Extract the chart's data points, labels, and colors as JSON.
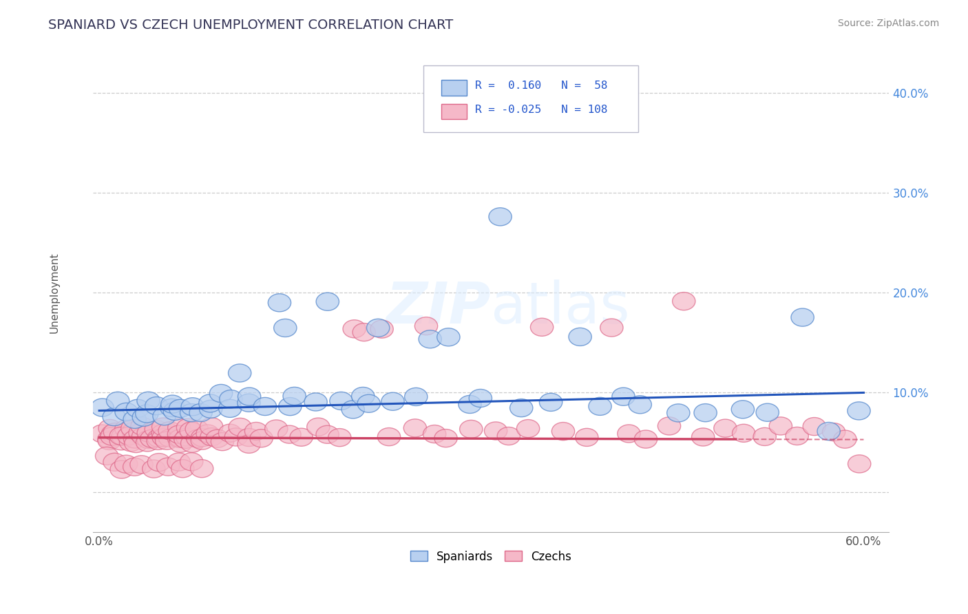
{
  "title": "SPANIARD VS CZECH UNEMPLOYMENT CORRELATION CHART",
  "source": "Source: ZipAtlas.com",
  "ylabel": "Unemployment",
  "xlim": [
    -0.005,
    0.62
  ],
  "ylim": [
    -0.04,
    0.44
  ],
  "xticks": [
    0.0,
    0.1,
    0.2,
    0.3,
    0.4,
    0.5,
    0.6
  ],
  "xtick_labels": [
    "0.0%",
    "",
    "",
    "",
    "",
    "",
    "60.0%"
  ],
  "yticks": [
    0.0,
    0.1,
    0.2,
    0.3,
    0.4
  ],
  "ytick_labels": [
    "",
    "10.0%",
    "20.0%",
    "30.0%",
    "40.0%"
  ],
  "grid_color": "#cccccc",
  "background_color": "#ffffff",
  "spaniards_color_face": "#b8d0f0",
  "spaniards_color_edge": "#5588cc",
  "czechs_color_face": "#f5b8c8",
  "czechs_color_edge": "#dd6688",
  "spaniards_line_color": "#2255bb",
  "czechs_line_color": "#cc4466",
  "r_spaniards": 0.16,
  "r_czechs": -0.025,
  "n_spaniards": 58,
  "n_czechs": 108,
  "title_fontsize": 14,
  "axis_label_fontsize": 11,
  "tick_fontsize": 12,
  "sp_line_y0": 0.082,
  "sp_line_y1": 0.1,
  "cz_line_y0": 0.055,
  "cz_line_y1": 0.053,
  "cz_line_solid_end": 0.5,
  "spaniards_x": [
    0.005,
    0.01,
    0.015,
    0.02,
    0.025,
    0.03,
    0.035,
    0.04,
    0.04,
    0.045,
    0.05,
    0.055,
    0.06,
    0.06,
    0.065,
    0.07,
    0.075,
    0.08,
    0.085,
    0.09,
    0.095,
    0.1,
    0.105,
    0.11,
    0.115,
    0.12,
    0.13,
    0.14,
    0.145,
    0.15,
    0.155,
    0.17,
    0.18,
    0.19,
    0.2,
    0.205,
    0.21,
    0.22,
    0.23,
    0.25,
    0.26,
    0.275,
    0.29,
    0.3,
    0.315,
    0.33,
    0.355,
    0.375,
    0.395,
    0.41,
    0.425,
    0.455,
    0.475,
    0.505,
    0.525,
    0.555,
    0.575,
    0.595
  ],
  "spaniards_y": [
    0.085,
    0.075,
    0.09,
    0.08,
    0.075,
    0.085,
    0.075,
    0.08,
    0.09,
    0.085,
    0.075,
    0.085,
    0.08,
    0.09,
    0.085,
    0.08,
    0.085,
    0.08,
    0.085,
    0.09,
    0.1,
    0.085,
    0.095,
    0.12,
    0.09,
    0.095,
    0.085,
    0.19,
    0.165,
    0.085,
    0.095,
    0.09,
    0.19,
    0.09,
    0.085,
    0.095,
    0.09,
    0.165,
    0.09,
    0.095,
    0.155,
    0.155,
    0.09,
    0.095,
    0.275,
    0.085,
    0.09,
    0.155,
    0.085,
    0.095,
    0.09,
    0.08,
    0.08,
    0.085,
    0.08,
    0.175,
    0.06,
    0.08
  ],
  "czechs_x": [
    0.003,
    0.005,
    0.007,
    0.01,
    0.01,
    0.012,
    0.015,
    0.015,
    0.018,
    0.02,
    0.02,
    0.022,
    0.025,
    0.025,
    0.028,
    0.03,
    0.03,
    0.032,
    0.035,
    0.035,
    0.038,
    0.04,
    0.04,
    0.042,
    0.045,
    0.045,
    0.048,
    0.05,
    0.05,
    0.053,
    0.055,
    0.055,
    0.058,
    0.06,
    0.06,
    0.062,
    0.065,
    0.065,
    0.068,
    0.07,
    0.07,
    0.073,
    0.075,
    0.075,
    0.078,
    0.08,
    0.082,
    0.085,
    0.088,
    0.09,
    0.09,
    0.095,
    0.1,
    0.105,
    0.11,
    0.115,
    0.12,
    0.125,
    0.13,
    0.14,
    0.15,
    0.16,
    0.17,
    0.18,
    0.19,
    0.2,
    0.21,
    0.22,
    0.23,
    0.245,
    0.255,
    0.265,
    0.275,
    0.29,
    0.31,
    0.32,
    0.335,
    0.35,
    0.365,
    0.385,
    0.4,
    0.415,
    0.43,
    0.45,
    0.46,
    0.475,
    0.49,
    0.505,
    0.52,
    0.535,
    0.55,
    0.56,
    0.575,
    0.585,
    0.595,
    0.006,
    0.012,
    0.018,
    0.024,
    0.03,
    0.036,
    0.042,
    0.048,
    0.054,
    0.06,
    0.067,
    0.073,
    0.079
  ],
  "czechs_y": [
    0.06,
    0.055,
    0.065,
    0.06,
    0.05,
    0.055,
    0.06,
    0.05,
    0.055,
    0.065,
    0.055,
    0.05,
    0.06,
    0.055,
    0.065,
    0.055,
    0.05,
    0.06,
    0.055,
    0.065,
    0.055,
    0.05,
    0.06,
    0.055,
    0.065,
    0.055,
    0.05,
    0.06,
    0.055,
    0.065,
    0.055,
    0.05,
    0.06,
    0.055,
    0.065,
    0.055,
    0.05,
    0.06,
    0.055,
    0.065,
    0.055,
    0.05,
    0.06,
    0.055,
    0.065,
    0.055,
    0.05,
    0.06,
    0.055,
    0.065,
    0.055,
    0.05,
    0.06,
    0.055,
    0.065,
    0.055,
    0.05,
    0.06,
    0.055,
    0.065,
    0.06,
    0.055,
    0.065,
    0.06,
    0.055,
    0.165,
    0.16,
    0.165,
    0.055,
    0.065,
    0.165,
    0.06,
    0.055,
    0.065,
    0.06,
    0.055,
    0.065,
    0.165,
    0.06,
    0.055,
    0.165,
    0.06,
    0.055,
    0.065,
    0.19,
    0.055,
    0.065,
    0.06,
    0.055,
    0.065,
    0.055,
    0.065,
    0.06,
    0.055,
    0.03,
    0.035,
    0.03,
    0.025,
    0.03,
    0.025,
    0.03,
    0.025,
    0.03,
    0.025,
    0.03,
    0.025,
    0.03,
    0.025
  ]
}
